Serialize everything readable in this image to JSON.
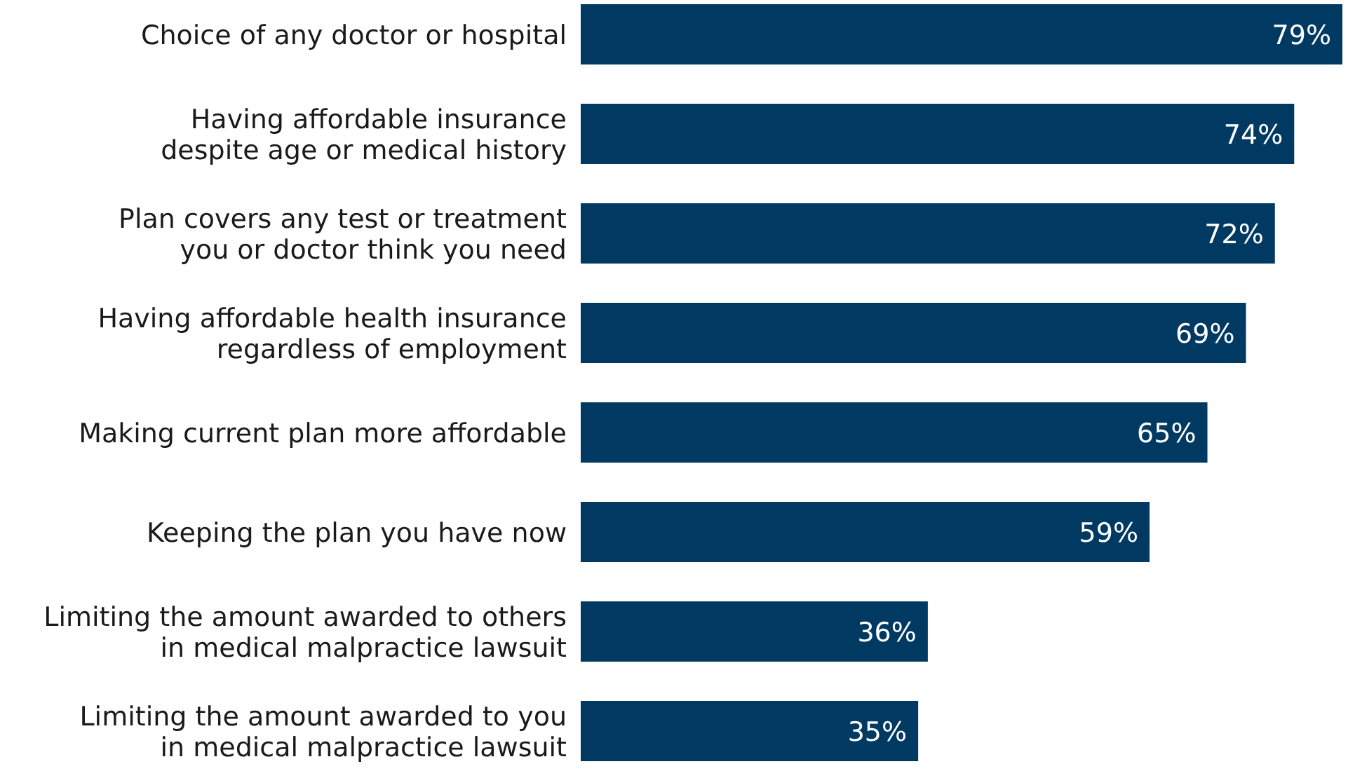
{
  "chart_data": {
    "type": "bar",
    "orientation": "horizontal",
    "value_labels": [
      "79%",
      "74%",
      "72%",
      "69%",
      "65%",
      "59%",
      "36%",
      "35%"
    ],
    "color": "#003a63",
    "categories": [
      "Choice of any doctor or hospital",
      "Having affordable insurance\ndespite age or medical history",
      "Plan covers any test or treatment\nyou or doctor think you need",
      "Having affordable health insurance\nregardless of employment",
      "Making current plan more affordable",
      "Keeping the plan you have now",
      "Limiting the amount awarded to others\nin medical malpractice lawsuit",
      "Limiting the amount awarded to you\nin medical malpractice lawsuit"
    ],
    "values": [
      79,
      74,
      72,
      69,
      65,
      59,
      36,
      35
    ]
  }
}
